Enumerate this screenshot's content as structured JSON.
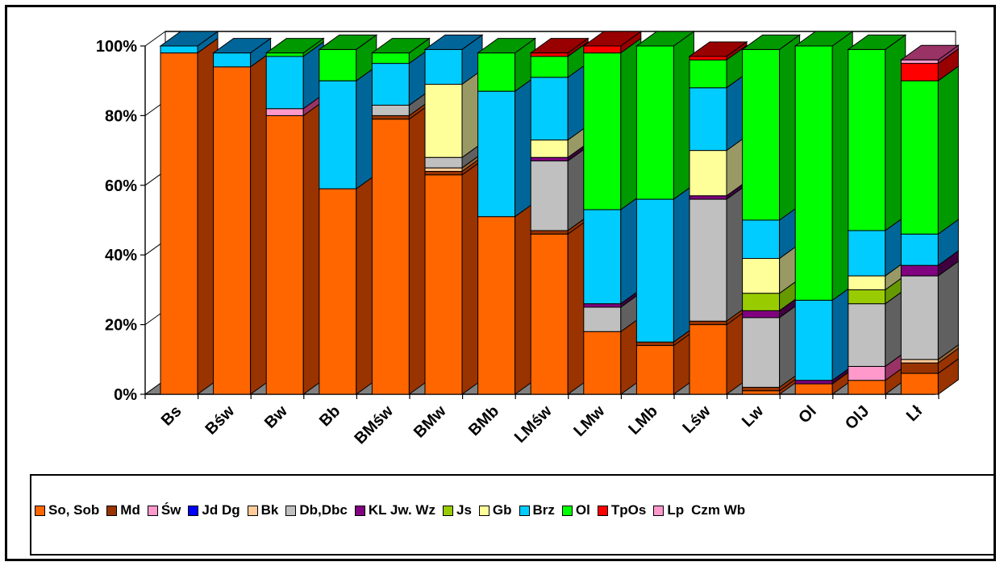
{
  "chart_data": {
    "type": "bar",
    "stacked": true,
    "percent": true,
    "three_d": true,
    "categories": [
      "Bs",
      "Bśw",
      "Bw",
      "Bb",
      "BMśw",
      "BMw",
      "BMb",
      "LMśw",
      "LMw",
      "LMb",
      "Lśw",
      "Lw",
      "Ol",
      "OlJ",
      "Lł"
    ],
    "y_ticks": [
      "0%",
      "20%",
      "40%",
      "60%",
      "80%",
      "100%"
    ],
    "ylim": [
      0,
      100
    ],
    "grid": true,
    "legend_position": "bottom",
    "series": [
      {
        "name": "So, Sob",
        "color": "#ff6600",
        "side": "#993300",
        "values": [
          98,
          94,
          80,
          59,
          79,
          63,
          51,
          46,
          18,
          14,
          20,
          1,
          3,
          4,
          6
        ]
      },
      {
        "name": "Md",
        "color": "#993300",
        "side": "#993300",
        "values": [
          0,
          0,
          0,
          0,
          1,
          1,
          0,
          1,
          0,
          1,
          1,
          1,
          0,
          0,
          3
        ]
      },
      {
        "name": "Św",
        "color": "#ff99cc",
        "side": "#993366",
        "values": [
          0,
          0,
          2,
          0,
          0,
          0,
          0,
          0,
          0,
          0,
          0,
          0,
          0,
          4,
          0
        ]
      },
      {
        "name": "Jd Dg",
        "color": "#0000ff",
        "side": "#000080",
        "values": [
          0,
          0,
          0,
          0,
          0,
          0,
          0,
          0,
          0,
          0,
          0,
          0,
          0,
          0,
          0
        ]
      },
      {
        "name": "Bk",
        "color": "#ffcc99",
        "side": "#996633",
        "values": [
          0,
          0,
          0,
          0,
          0,
          1,
          0,
          0,
          0,
          0,
          0,
          0,
          0,
          0,
          1
        ]
      },
      {
        "name": "Db,Dbc",
        "color": "#c0c0c0",
        "side": "#606060",
        "values": [
          0,
          0,
          0,
          0,
          3,
          3,
          0,
          20,
          7,
          0,
          35,
          20,
          0,
          18,
          24
        ]
      },
      {
        "name": "KL Jw. Wz",
        "color": "#800080",
        "side": "#400040",
        "values": [
          0,
          0,
          0,
          0,
          0,
          0,
          0,
          1,
          1,
          0,
          1,
          2,
          1,
          0,
          3
        ]
      },
      {
        "name": "Js",
        "color": "#99cc00",
        "side": "#669900",
        "values": [
          0,
          0,
          0,
          0,
          0,
          0,
          0,
          0,
          0,
          0,
          0,
          5,
          0,
          4,
          0
        ]
      },
      {
        "name": "Gb",
        "color": "#ffff99",
        "side": "#999966",
        "values": [
          0,
          0,
          0,
          0,
          0,
          21,
          0,
          5,
          0,
          0,
          13,
          10,
          0,
          4,
          0
        ]
      },
      {
        "name": "Brz",
        "color": "#00ccff",
        "side": "#006699",
        "values": [
          2,
          4,
          15,
          31,
          12,
          10,
          36,
          18,
          27,
          41,
          18,
          11,
          23,
          13,
          9
        ]
      },
      {
        "name": "Ol",
        "color": "#00ff00",
        "side": "#009900",
        "values": [
          0,
          0,
          1,
          9,
          3,
          0,
          11,
          6,
          45,
          44,
          8,
          49,
          73,
          52,
          44
        ]
      },
      {
        "name": "TpOs",
        "color": "#ff0000",
        "side": "#990000",
        "values": [
          0,
          0,
          0,
          0,
          0,
          0,
          0,
          1,
          2,
          0,
          1,
          0,
          0,
          0,
          5
        ]
      },
      {
        "name": "Lp",
        "color": "#ff99cc",
        "side": "#993366",
        "values": [
          0,
          0,
          0,
          0,
          0,
          0,
          0,
          0,
          0,
          0,
          0,
          0,
          0,
          0,
          1
        ]
      },
      {
        "name": "Czm Wb",
        "color": "#ffffff",
        "side": "#999999",
        "values": [
          0,
          0,
          0,
          0,
          0,
          0,
          0,
          0,
          0,
          0,
          0,
          0,
          0,
          0,
          0
        ]
      }
    ]
  }
}
